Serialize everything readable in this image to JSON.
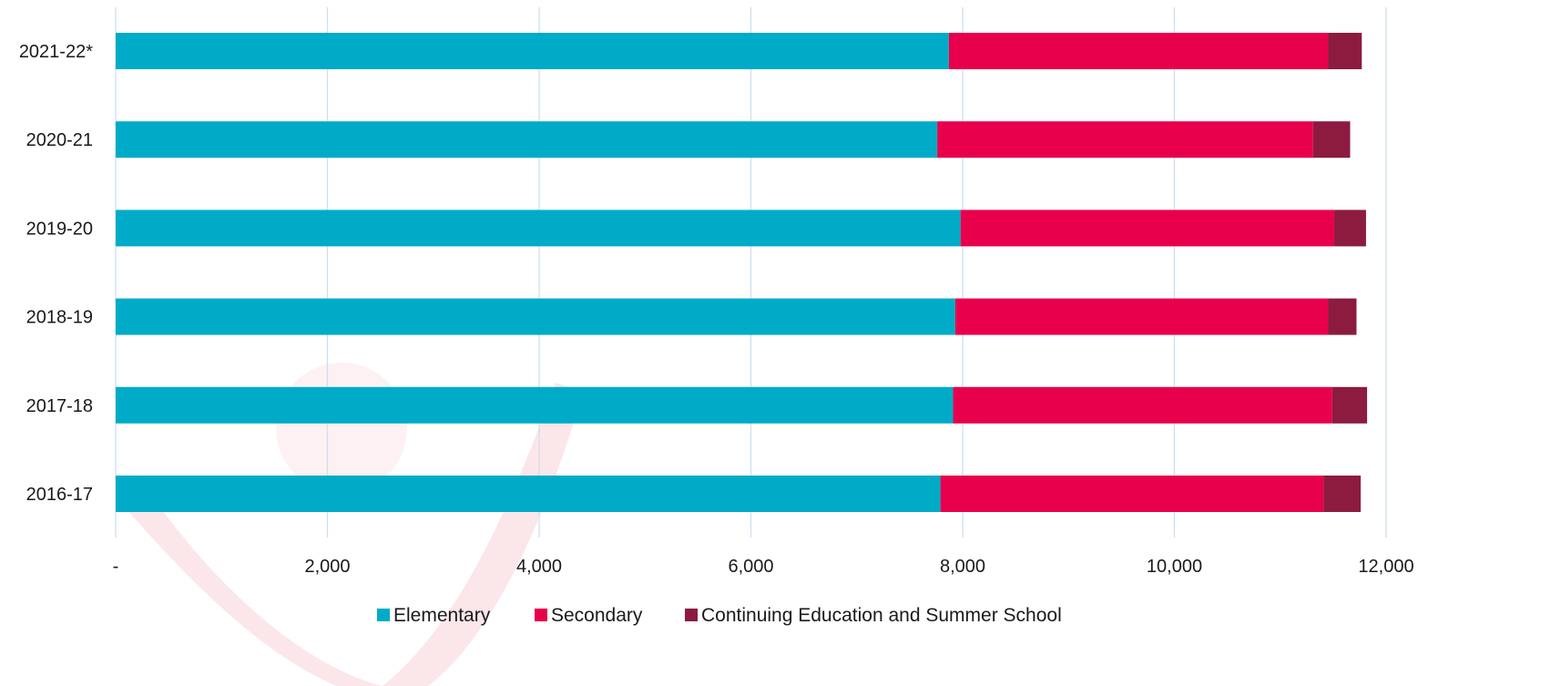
{
  "chart_data": {
    "type": "bar",
    "orientation": "horizontal",
    "stacked": true,
    "title": "",
    "xlabel": "",
    "ylabel": "",
    "categories": [
      "2021-22*",
      "2020-21",
      "2019-20",
      "2018-19",
      "2017-18",
      "2016-17"
    ],
    "series": [
      {
        "name": "Elementary",
        "color": "#00abc8",
        "values": [
          7870,
          7760,
          7980,
          7930,
          7910,
          7790
        ]
      },
      {
        "name": "Secondary",
        "color": "#e8004c",
        "values": [
          3580,
          3550,
          3530,
          3520,
          3580,
          3620
        ]
      },
      {
        "name": "Continuing Education and Summer School",
        "color": "#8c1b3f",
        "values": [
          320,
          350,
          300,
          270,
          330,
          350
        ]
      }
    ],
    "xlim": [
      0,
      12000
    ],
    "xticks": [
      0,
      2000,
      4000,
      6000,
      8000,
      10000,
      12000
    ],
    "xtick_labels": [
      "-",
      "2,000",
      "4,000",
      "6,000",
      "8,000",
      "10,000",
      "12,000"
    ],
    "grid": true,
    "gridline_color": "#cfe0ef",
    "legend": "bottom-center"
  }
}
